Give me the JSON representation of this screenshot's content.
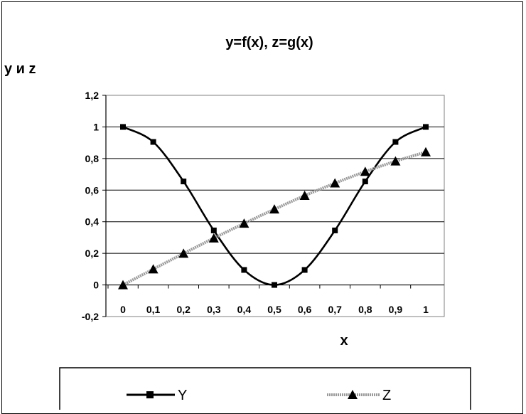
{
  "chart_data": {
    "type": "line",
    "title": "y=f(x), z=g(x)",
    "xlabel": "x",
    "ylabel": "y и z",
    "x": [
      0,
      0.1,
      0.2,
      0.3,
      0.4,
      0.5,
      0.6,
      0.7,
      0.8,
      0.9,
      1
    ],
    "x_tick_labels": [
      "0",
      "0,1",
      "0,2",
      "0,3",
      "0,4",
      "0,5",
      "0,6",
      "0,7",
      "0,8",
      "0,9",
      "1"
    ],
    "y_tick_labels": [
      "-0,2",
      "0",
      "0,2",
      "0,4",
      "0,6",
      "0,8",
      "1",
      "1,2"
    ],
    "y_ticks": [
      -0.2,
      0,
      0.2,
      0.4,
      0.6,
      0.8,
      1,
      1.2
    ],
    "ylim": [
      -0.2,
      1.2
    ],
    "grid": true,
    "legend_position": "bottom",
    "series": [
      {
        "name": "Y",
        "values": [
          1.0,
          0.905,
          0.655,
          0.345,
          0.095,
          0.0,
          0.095,
          0.345,
          0.655,
          0.905,
          1.0
        ],
        "marker": "square",
        "color": "#000000"
      },
      {
        "name": "Z",
        "values": [
          0.0,
          0.1,
          0.199,
          0.296,
          0.389,
          0.479,
          0.565,
          0.644,
          0.717,
          0.783,
          0.841
        ],
        "marker": "triangle",
        "color": "#9a9a9a"
      }
    ]
  }
}
